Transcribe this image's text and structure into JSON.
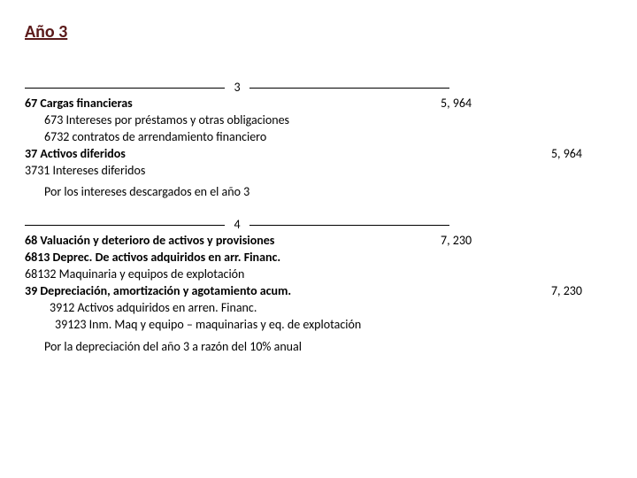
{
  "title": "Año 3",
  "entry1": {
    "num": "3",
    "lines": [
      {
        "desc": "67 Cargas financieras",
        "debit": "5, 964",
        "credit": "",
        "bold": true,
        "indent": 0
      },
      {
        "desc": "673 Intereses por préstamos y otras obligaciones",
        "debit": "",
        "credit": "",
        "bold": false,
        "indent": 1
      },
      {
        "desc": "6732 contratos de arrendamiento financiero",
        "debit": "",
        "credit": "",
        "bold": false,
        "indent": 1
      },
      {
        "desc": "37 Activos diferidos",
        "debit": "",
        "credit": "5, 964",
        "bold": true,
        "indent": 0
      },
      {
        "desc": "3731 Intereses diferidos",
        "debit": "",
        "credit": "",
        "bold": false,
        "indent": 0
      }
    ],
    "note": "Por los intereses descargados en el año 3"
  },
  "entry2": {
    "num": "4",
    "lines": [
      {
        "desc": "68 Valuación y deterioro de activos y provisiones",
        "debit": "7, 230",
        "credit": "",
        "bold": true,
        "indent": 0
      },
      {
        "desc": "6813 Deprec. De activos adquiridos en arr. Financ.",
        "debit": "",
        "credit": "",
        "bold": true,
        "indent": 0
      },
      {
        "desc": "68132 Maquinaria y equipos de explotación",
        "debit": "",
        "credit": "",
        "bold": false,
        "indent": 0
      },
      {
        "desc": "39 Depreciación, amortización y agotamiento acum.",
        "debit": "",
        "credit": "7, 230",
        "bold": true,
        "indent": 0
      },
      {
        "desc": "3912 Activos adquiridos en arren. Financ.",
        "debit": "",
        "credit": "",
        "bold": false,
        "indent": 2
      },
      {
        "desc": "39123 Inm. Maq y equipo – maquinarias y eq. de explotación",
        "debit": "",
        "credit": "",
        "bold": false,
        "indent": 3
      }
    ],
    "note": "Por la depreciación del año 3 a razón del 10% anual"
  },
  "colors": {
    "title": "#5b1a1a",
    "text": "#000000",
    "background": "#ffffff"
  }
}
